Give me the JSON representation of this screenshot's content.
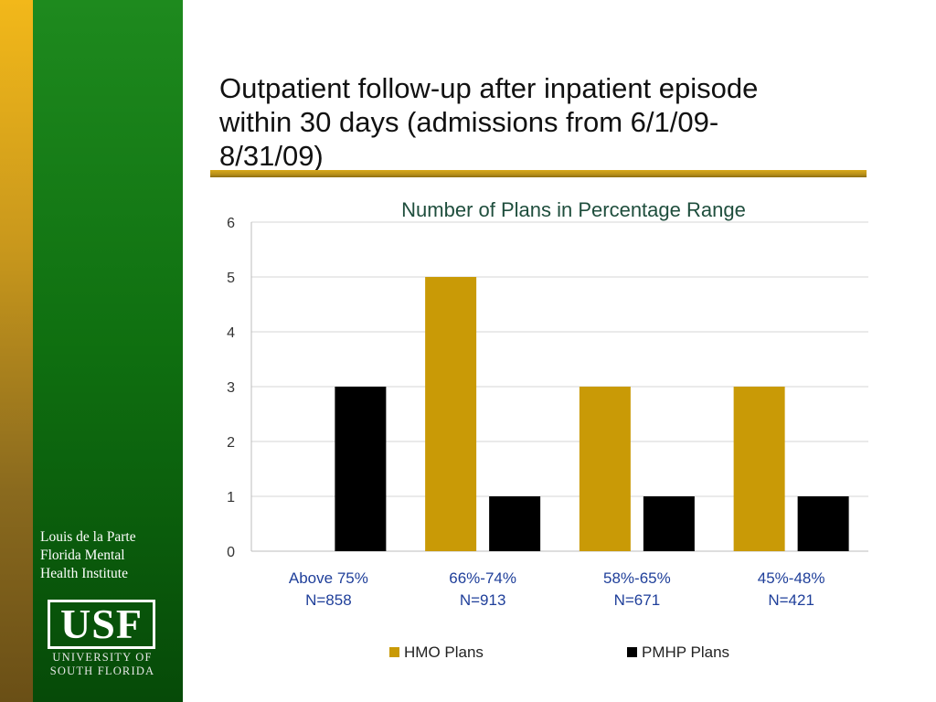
{
  "sidebar": {
    "institute_lines": [
      "Louis de la Parte",
      "Florida Mental",
      "Health Institute"
    ],
    "logo_text": "USF",
    "university_lines": [
      "UNIVERSITY OF",
      "SOUTH FLORIDA"
    ]
  },
  "slide": {
    "title_lines": [
      "Outpatient follow-up after inpatient episode",
      "within 30 days (admissions from 6/1/09-",
      "8/31/09)"
    ]
  },
  "colors": {
    "hmo": "#c99a06",
    "pmhp": "#000000",
    "chart_title": "#1f4e3d",
    "grid": "#d4d4d4"
  },
  "chart_data": {
    "type": "bar",
    "title": "Number of Plans in Percentage Range",
    "categories": [
      [
        "Above 75%",
        "N=858"
      ],
      [
        "66%-74%",
        "N=913"
      ],
      [
        "58%-65%",
        "N=671"
      ],
      [
        "45%-48%",
        "N=421"
      ]
    ],
    "series": [
      {
        "name": "HMO Plans",
        "values": [
          0,
          5,
          3,
          3
        ],
        "color": "#c99a06"
      },
      {
        "name": "PMHP Plans",
        "values": [
          3,
          1,
          1,
          1
        ],
        "color": "#000000"
      }
    ],
    "ylim": [
      0,
      6
    ],
    "yticks": [
      0,
      1,
      2,
      3,
      4,
      5,
      6
    ],
    "grid": true,
    "legend": "bottom"
  }
}
